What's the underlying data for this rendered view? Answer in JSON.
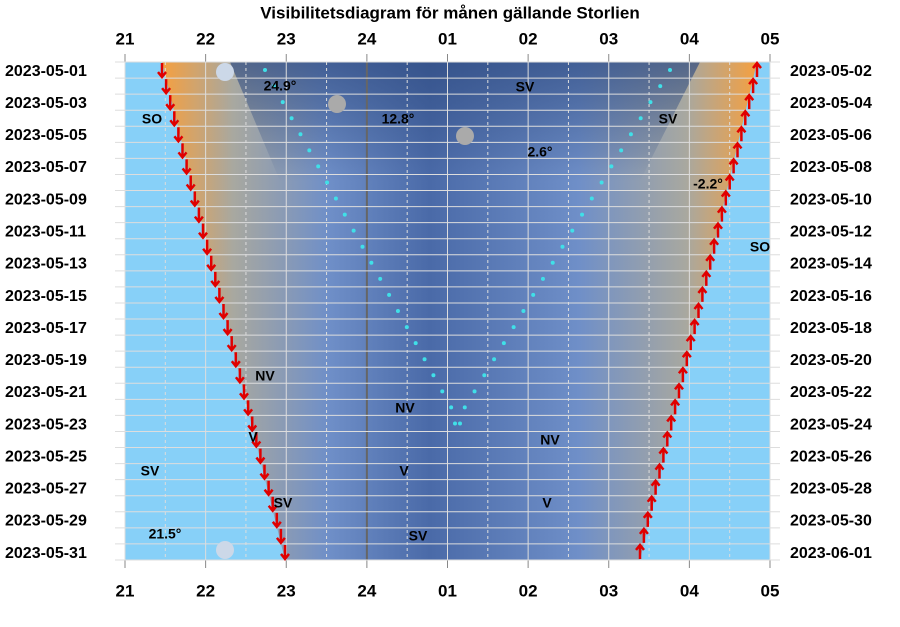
{
  "title": "Visibilitetsdiagram för månen gällande Storlien",
  "hours_top": [
    "21",
    "22",
    "23",
    "24",
    "01",
    "02",
    "03",
    "04",
    "05"
  ],
  "hours_bottom": [
    "21",
    "22",
    "23",
    "24",
    "01",
    "02",
    "03",
    "04",
    "05"
  ],
  "dates_left": [
    "2023-05-01",
    "2023-05-03",
    "2023-05-05",
    "2023-05-07",
    "2023-05-09",
    "2023-05-11",
    "2023-05-13",
    "2023-05-15",
    "2023-05-17",
    "2023-05-19",
    "2023-05-21",
    "2023-05-23",
    "2023-05-25",
    "2023-05-27",
    "2023-05-29",
    "2023-05-31"
  ],
  "dates_right": [
    "2023-05-02",
    "2023-05-04",
    "2023-05-06",
    "2023-05-08",
    "2023-05-10",
    "2023-05-12",
    "2023-05-14",
    "2023-05-16",
    "2023-05-18",
    "2023-05-20",
    "2023-05-22",
    "2023-05-24",
    "2023-05-26",
    "2023-05-28",
    "2023-05-30",
    "2023-06-01"
  ],
  "annotations": [
    "24.9°",
    "12.8°",
    "2.6°",
    "-2.2°",
    "21.5°",
    "SV",
    "SO",
    "SV",
    "SO",
    "NV",
    "NV",
    "NV",
    "V",
    "SV",
    "V",
    "V",
    "SV",
    "SV"
  ]
}
